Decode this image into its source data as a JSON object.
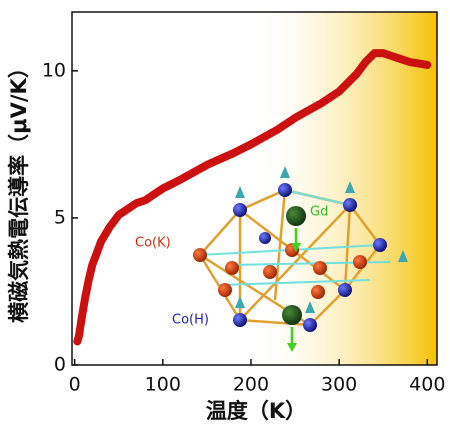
{
  "chart_data": {
    "type": "line",
    "x_label": "温度（K）",
    "y_label": "横磁気熱電伝導率（μV/K）",
    "x": [
      3,
      5,
      8,
      12,
      16,
      20,
      25,
      30,
      40,
      50,
      60,
      70,
      80,
      100,
      120,
      150,
      180,
      200,
      230,
      250,
      280,
      300,
      320,
      330,
      340,
      350,
      360,
      370,
      380,
      390,
      400
    ],
    "series": [
      {
        "name": null,
        "color": "#cc1010",
        "values": [
          0.8,
          1.0,
          1.6,
          2.3,
          2.9,
          3.4,
          3.8,
          4.2,
          4.7,
          5.1,
          5.3,
          5.5,
          5.6,
          6.0,
          6.3,
          6.8,
          7.2,
          7.5,
          8.0,
          8.4,
          8.9,
          9.3,
          9.9,
          10.3,
          10.6,
          10.6,
          10.5,
          10.4,
          10.3,
          10.25,
          10.2
        ]
      }
    ],
    "xlim": [
      -3,
      411
    ],
    "ylim": [
      0,
      12
    ],
    "xticks": [
      0,
      100,
      200,
      300,
      400
    ],
    "yticks": [
      0,
      5,
      10
    ],
    "shaded_region": {
      "xrange": [
        200,
        411
      ],
      "color": "#f5c000"
    },
    "annotations": [
      "Co(K)",
      "Co(H)",
      "Gd"
    ]
  }
}
